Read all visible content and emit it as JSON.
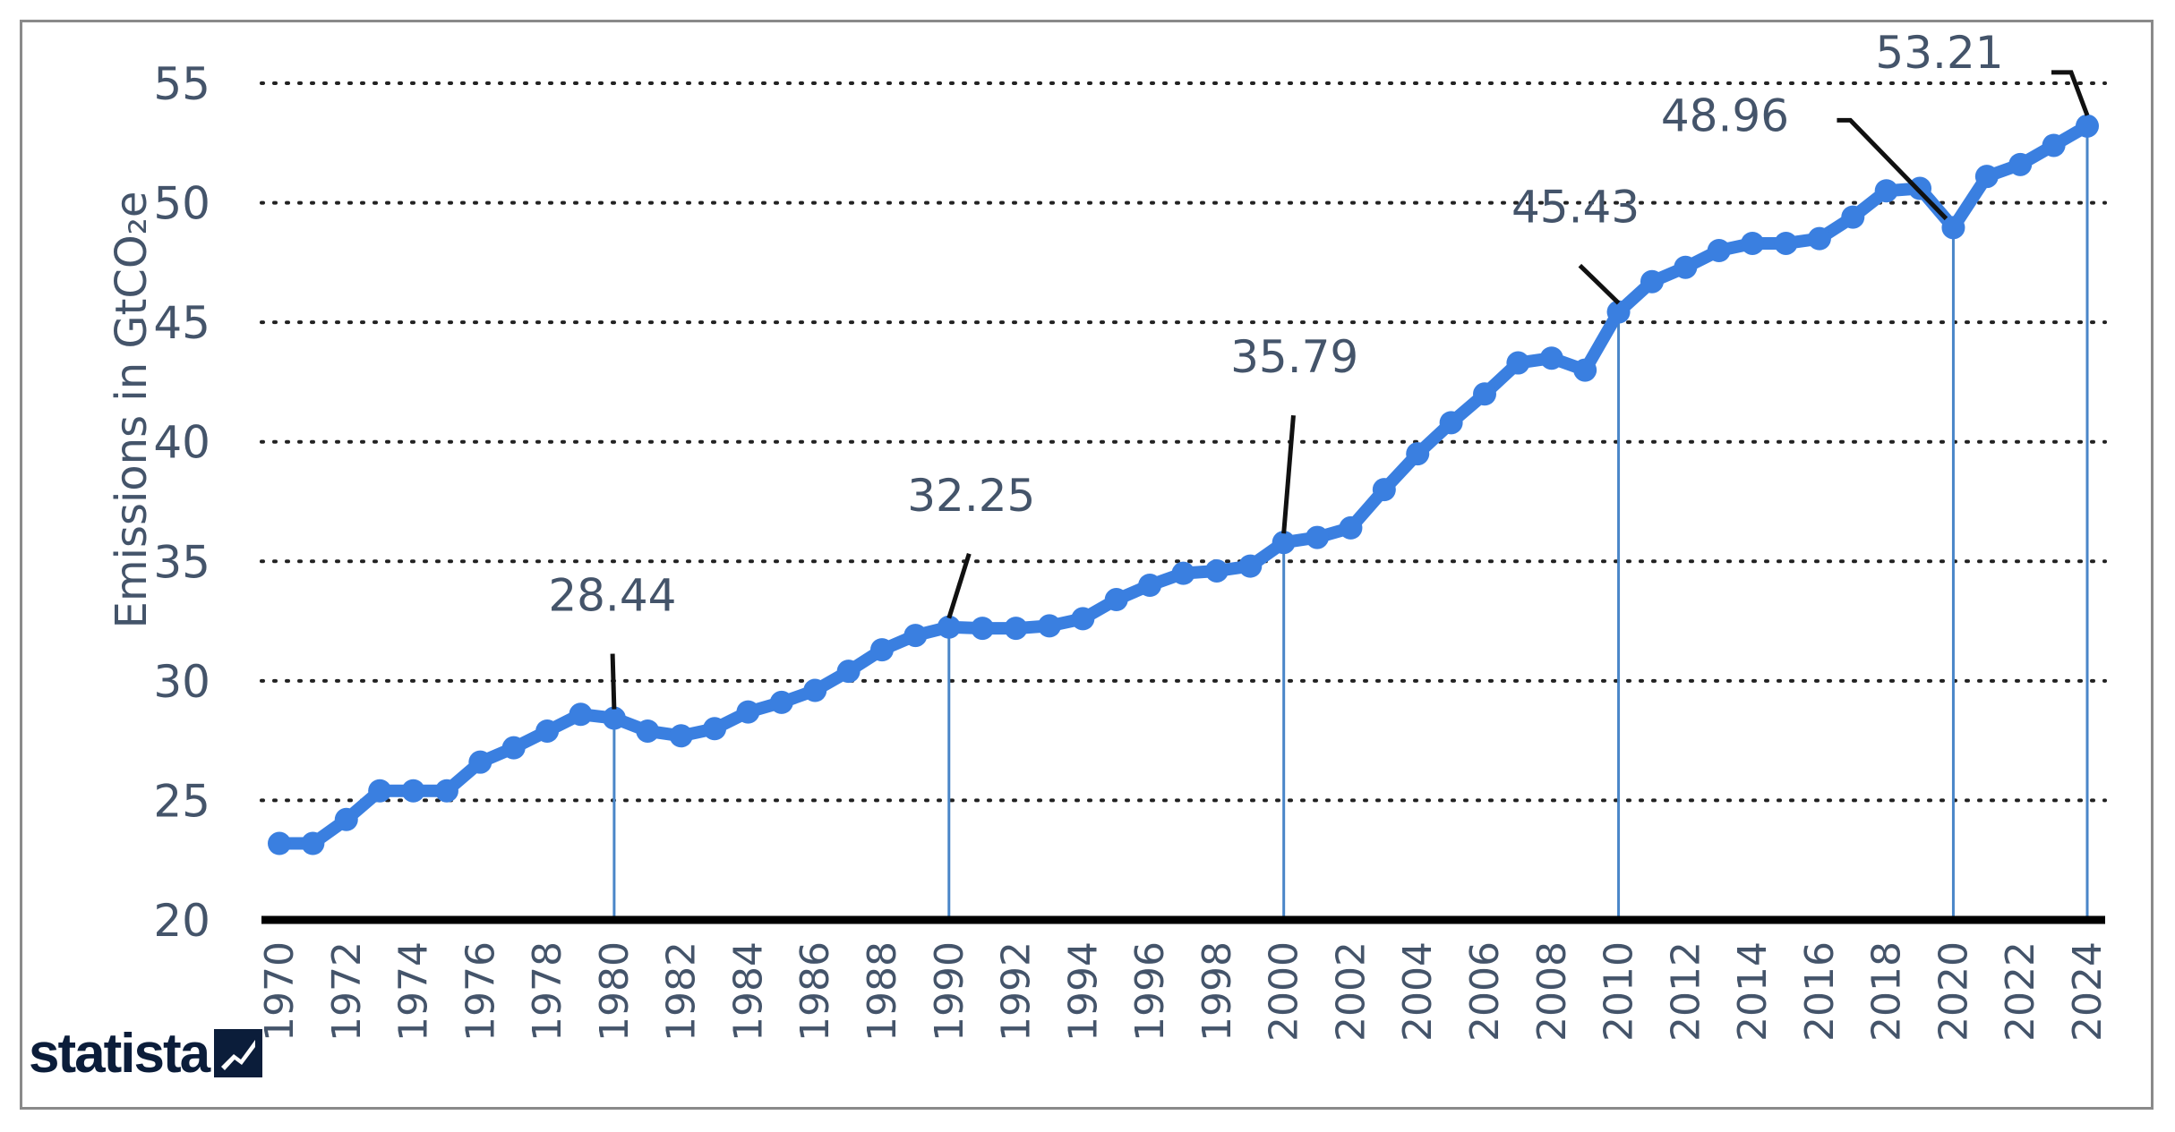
{
  "brand": {
    "name": "statista"
  },
  "colors": {
    "line": "#3a7fe0",
    "drop": "#4a86c8",
    "grid": "#222222",
    "text": "#44546a",
    "axis": "#000000"
  },
  "chart_data": {
    "type": "line",
    "ylabel": "Emissions in GtCO₂e",
    "ylim": [
      20,
      55
    ],
    "y_ticks": [
      20,
      25,
      30,
      35,
      40,
      45,
      50,
      55
    ],
    "x_ticks": [
      "1970",
      "1972",
      "1974",
      "1976",
      "1978",
      "1980",
      "1982",
      "1984",
      "1986",
      "1988",
      "1990",
      "1992",
      "1994",
      "1996",
      "1998",
      "2000",
      "2002",
      "2004",
      "2006",
      "2008",
      "2010",
      "2012",
      "2014",
      "2016",
      "2018",
      "2020",
      "2022",
      "2024"
    ],
    "grid": "horizontal-dotted",
    "series": [
      {
        "x": [
          1970,
          1971,
          1972,
          1973,
          1974,
          1975,
          1976,
          1977,
          1978,
          1979,
          1980,
          1981,
          1982,
          1983,
          1984,
          1985,
          1986,
          1987,
          1988,
          1989,
          1990,
          1991,
          1992,
          1993,
          1994,
          1995,
          1996,
          1997,
          1998,
          1999,
          2000,
          2001,
          2002,
          2003,
          2004,
          2005,
          2006,
          2007,
          2008,
          2009,
          2010,
          2011,
          2012,
          2013,
          2014,
          2015,
          2016,
          2017,
          2018,
          2019,
          2020,
          2021,
          2022,
          2023,
          2024
        ],
        "y": [
          23.2,
          23.2,
          24.2,
          25.4,
          25.4,
          25.4,
          26.6,
          27.2,
          27.9,
          28.6,
          28.44,
          27.9,
          27.7,
          28.0,
          28.7,
          29.1,
          29.6,
          30.4,
          31.3,
          31.9,
          32.25,
          32.2,
          32.2,
          32.3,
          32.6,
          33.4,
          34.0,
          34.5,
          34.6,
          34.8,
          35.79,
          36.0,
          36.4,
          38.0,
          39.5,
          40.8,
          42.0,
          43.3,
          43.5,
          43.0,
          45.43,
          46.7,
          47.3,
          48.0,
          48.3,
          48.3,
          48.5,
          49.4,
          50.5,
          50.6,
          48.96,
          51.1,
          51.6,
          52.4,
          53.21
        ]
      }
    ],
    "annotations": [
      {
        "x": 1980,
        "y": 28.44,
        "label": "28.44"
      },
      {
        "x": 1990,
        "y": 32.25,
        "label": "32.25"
      },
      {
        "x": 2000,
        "y": 35.79,
        "label": "35.79"
      },
      {
        "x": 2010,
        "y": 45.43,
        "label": "45.43"
      },
      {
        "x": 2020,
        "y": 48.96,
        "label": "48.96"
      },
      {
        "x": 2024,
        "y": 53.21,
        "label": "53.21"
      }
    ]
  }
}
